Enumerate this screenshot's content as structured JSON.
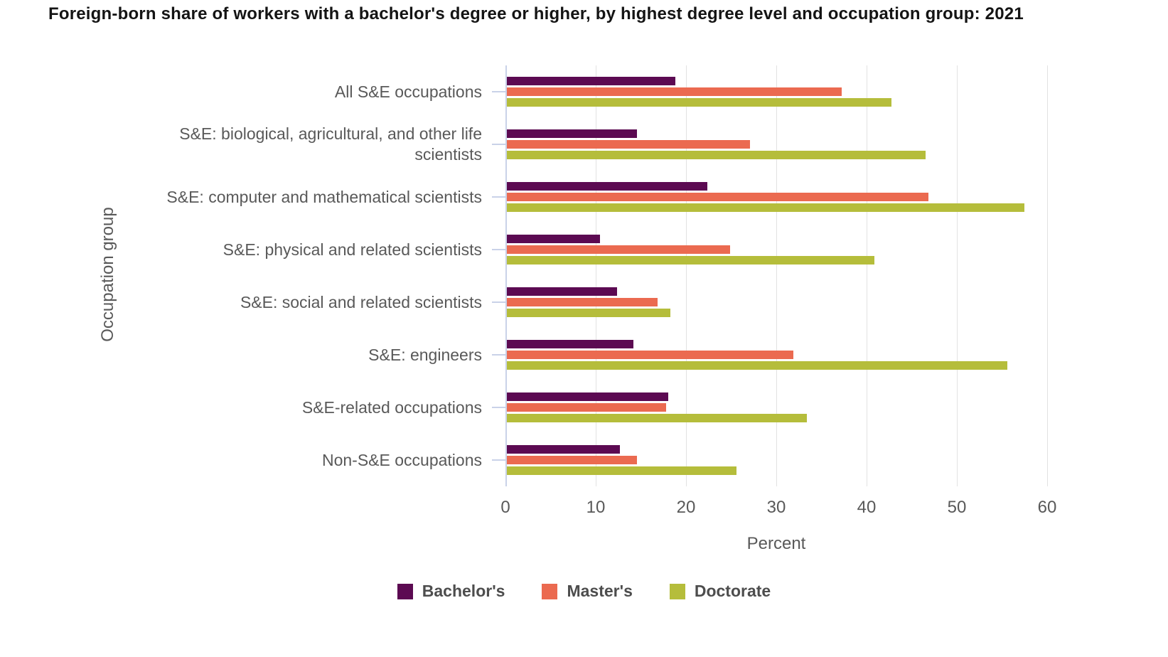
{
  "chart_data": {
    "type": "bar",
    "orientation": "horizontal",
    "title": "Foreign-born share of workers with a bachelor's degree or higher, by highest degree level and occupation group: 2021",
    "xlabel": "Percent",
    "ylabel": "Occupation group",
    "xlim": [
      0,
      60
    ],
    "xticks": [
      0,
      10,
      20,
      30,
      40,
      50,
      60
    ],
    "grid": "vertical-gridlines-on",
    "legend_position": "bottom-center",
    "categories": [
      "All S&E occupations",
      "S&E: biological, agricultural, and other life scientists",
      "S&E: computer and mathematical scientists",
      "S&E: physical and related scientists",
      "S&E: social and related scientists",
      "S&E: engineers",
      "S&E-related occupations",
      "Non-S&E occupations"
    ],
    "series": [
      {
        "name": "Bachelor's",
        "color": "#5c0a52",
        "values": [
          18.7,
          14.4,
          22.2,
          10.3,
          12.2,
          14.0,
          17.9,
          12.5
        ]
      },
      {
        "name": "Master's",
        "color": "#eb6a50",
        "values": [
          37.1,
          26.9,
          46.7,
          24.7,
          16.7,
          31.7,
          17.6,
          14.4
        ]
      },
      {
        "name": "Doctorate",
        "color": "#b5bd3b",
        "values": [
          42.6,
          46.4,
          57.3,
          40.7,
          18.1,
          55.4,
          33.2,
          25.4
        ]
      }
    ],
    "style": {
      "axis_zero_line_color": "#c9d2e8",
      "gridline_color": "#e2e2e2",
      "axis_text_color": "#595959",
      "title_color": "#141414",
      "legend_text_color": "#4d4d4d",
      "background": "#ffffff"
    }
  }
}
